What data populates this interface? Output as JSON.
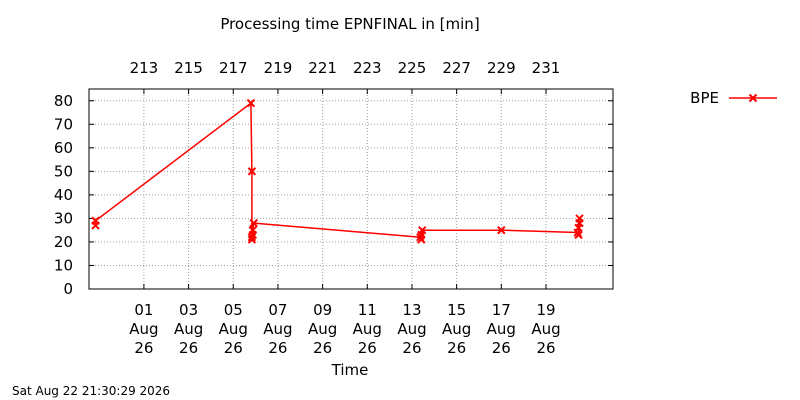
{
  "chart_data": {
    "type": "line",
    "title": "Processing time EPNFINAL in [min]",
    "xlabel": "Time",
    "ylabel": "",
    "ylim": [
      0,
      85
    ],
    "yticks": [
      0,
      10,
      20,
      30,
      40,
      50,
      60,
      70,
      80
    ],
    "xlim": [
      "2026-07-29 13:00",
      "2026-08-22 00:00"
    ],
    "xticks": [
      {
        "date": "2026-08-01",
        "label": [
          "01",
          "Aug",
          "26"
        ]
      },
      {
        "date": "2026-08-03",
        "label": [
          "03",
          "Aug",
          "26"
        ]
      },
      {
        "date": "2026-08-05",
        "label": [
          "05",
          "Aug",
          "26"
        ]
      },
      {
        "date": "2026-08-07",
        "label": [
          "07",
          "Aug",
          "26"
        ]
      },
      {
        "date": "2026-08-09",
        "label": [
          "09",
          "Aug",
          "26"
        ]
      },
      {
        "date": "2026-08-11",
        "label": [
          "11",
          "Aug",
          "26"
        ]
      },
      {
        "date": "2026-08-13",
        "label": [
          "13",
          "Aug",
          "26"
        ]
      },
      {
        "date": "2026-08-15",
        "label": [
          "15",
          "Aug",
          "26"
        ]
      },
      {
        "date": "2026-08-17",
        "label": [
          "17",
          "Aug",
          "26"
        ]
      },
      {
        "date": "2026-08-19",
        "label": [
          "19",
          "Aug",
          "26"
        ]
      }
    ],
    "x2ticks": [
      {
        "date": "2026-08-01",
        "label": "213"
      },
      {
        "date": "2026-08-03",
        "label": "215"
      },
      {
        "date": "2026-08-05",
        "label": "217"
      },
      {
        "date": "2026-08-07",
        "label": "219"
      },
      {
        "date": "2026-08-09",
        "label": "221"
      },
      {
        "date": "2026-08-11",
        "label": "223"
      },
      {
        "date": "2026-08-13",
        "label": "225"
      },
      {
        "date": "2026-08-15",
        "label": "227"
      },
      {
        "date": "2026-08-17",
        "label": "229"
      },
      {
        "date": "2026-08-19",
        "label": "231"
      }
    ],
    "grid": true,
    "legend": "top-right",
    "series": [
      {
        "name": "BPE",
        "color": "#ff0000",
        "marker": "x",
        "points": [
          {
            "x": "2026-07-29 20:00",
            "y": 27
          },
          {
            "x": "2026-07-29 20:00",
            "y": 29
          },
          {
            "x": "2026-08-05 19:00",
            "y": 79
          },
          {
            "x": "2026-08-05 20:00",
            "y": 50
          },
          {
            "x": "2026-08-05 20:00",
            "y": 21
          },
          {
            "x": "2026-08-05 20:00",
            "y": 22
          },
          {
            "x": "2026-08-05 21:00",
            "y": 23
          },
          {
            "x": "2026-08-05 21:00",
            "y": 25
          },
          {
            "x": "2026-08-05 22:00",
            "y": 28
          },
          {
            "x": "2026-08-13 09:00",
            "y": 22
          },
          {
            "x": "2026-08-13 10:00",
            "y": 21
          },
          {
            "x": "2026-08-13 10:00",
            "y": 23
          },
          {
            "x": "2026-08-13 11:00",
            "y": 25
          },
          {
            "x": "2026-08-17 00:00",
            "y": 25
          },
          {
            "x": "2026-08-20 10:00",
            "y": 24
          },
          {
            "x": "2026-08-20 11:00",
            "y": 23
          },
          {
            "x": "2026-08-20 11:00",
            "y": 26
          },
          {
            "x": "2026-08-20 12:00",
            "y": 28
          },
          {
            "x": "2026-08-20 12:00",
            "y": 30
          }
        ]
      }
    ]
  },
  "timestamp": "Sat Aug 22 21:30:29 2026"
}
